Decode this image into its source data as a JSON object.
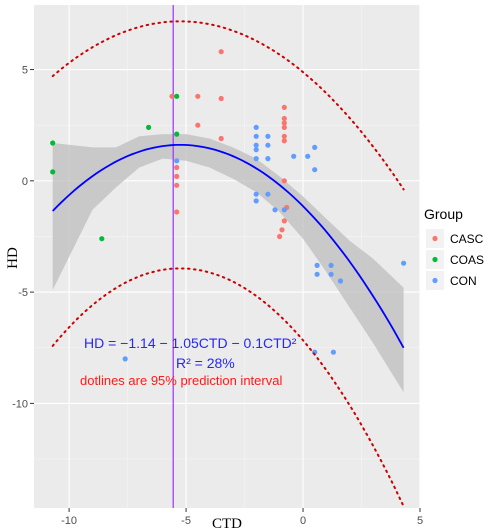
{
  "chart_data": {
    "type": "scatter",
    "title": "",
    "xlabel": "CTD",
    "ylabel": "HD",
    "xlim": [
      -11.5,
      5
    ],
    "ylim": [
      -14.7,
      7.9
    ],
    "xticks": [
      -10,
      -5,
      0,
      5
    ],
    "yticks": [
      5,
      0,
      -5,
      -10
    ],
    "xtick_labels": [
      "-10",
      "-5",
      "0",
      "5"
    ],
    "ytick_labels": [
      "5",
      "0",
      "-5",
      "-10"
    ],
    "grid": true,
    "legend": {
      "title": "Group",
      "position": "right",
      "entries": [
        "CASC",
        "COAS",
        "CON"
      ]
    },
    "series": [
      {
        "name": "CASC",
        "color": "#F8766D",
        "points": [
          [
            -3.5,
            5.8
          ],
          [
            -4.5,
            3.8
          ],
          [
            -3.5,
            3.7
          ],
          [
            -5.6,
            3.8
          ],
          [
            -4.5,
            2.5
          ],
          [
            -3.5,
            1.9
          ],
          [
            -5.4,
            0.6
          ],
          [
            -5.4,
            0.2
          ],
          [
            -5.4,
            -0.2
          ],
          [
            -5.4,
            -1.4
          ],
          [
            -0.8,
            3.3
          ],
          [
            -0.8,
            2.8
          ],
          [
            -0.8,
            2.6
          ],
          [
            -0.8,
            2.4
          ],
          [
            -0.8,
            2.0
          ],
          [
            -0.8,
            1.8
          ],
          [
            -0.8,
            0.0
          ],
          [
            -0.9,
            -2.2
          ],
          [
            -1.0,
            -2.5
          ],
          [
            -0.8,
            -1.8
          ],
          [
            -0.7,
            -1.2
          ]
        ]
      },
      {
        "name": "COAS",
        "color": "#00BA38",
        "points": [
          [
            -10.7,
            1.7
          ],
          [
            -10.7,
            0.4
          ],
          [
            -8.6,
            -2.6
          ],
          [
            -6.6,
            2.4
          ],
          [
            -5.4,
            3.8
          ],
          [
            -5.4,
            2.1
          ]
        ]
      },
      {
        "name": "CON",
        "color": "#619CFF",
        "points": [
          [
            -2.0,
            2.4
          ],
          [
            -2.0,
            2.0
          ],
          [
            -2.0,
            1.6
          ],
          [
            -2.0,
            1.4
          ],
          [
            -2.0,
            -0.6
          ],
          [
            -2.0,
            -0.9
          ],
          [
            -2.0,
            1.0
          ],
          [
            -1.5,
            2.0
          ],
          [
            -1.5,
            1.6
          ],
          [
            -1.5,
            1.0
          ],
          [
            -1.5,
            -0.6
          ],
          [
            -0.4,
            1.1
          ],
          [
            0.2,
            1.1
          ],
          [
            0.5,
            1.5
          ],
          [
            0.5,
            0.5
          ],
          [
            -1.2,
            -1.3
          ],
          [
            -0.8,
            -1.3
          ],
          [
            0.6,
            -3.8
          ],
          [
            1.2,
            -3.8
          ],
          [
            0.6,
            -4.2
          ],
          [
            1.2,
            -4.2
          ],
          [
            1.6,
            -4.5
          ],
          [
            4.3,
            -3.7
          ],
          [
            0.5,
            -7.7
          ],
          [
            1.3,
            -7.7
          ],
          [
            -7.6,
            -8.0
          ],
          [
            -5.4,
            0.9
          ]
        ]
      }
    ],
    "fit": {
      "formula": "HD = -1.14 - 1.05 CTD - 0.1 CTD^2",
      "intercept": -1.14,
      "b1": -1.05,
      "b2": -0.1,
      "x_range": [
        -10.7,
        4.3
      ],
      "line_color": "#0000FF",
      "band_color": "#BEBEBE",
      "band_lower": [
        [
          -10.7,
          -4.9
        ],
        [
          -9.0,
          -1.3
        ],
        [
          -8.0,
          -0.3
        ],
        [
          -7.0,
          0.6
        ],
        [
          -6.0,
          1.0
        ],
        [
          -5.0,
          0.9
        ],
        [
          -4.0,
          0.6
        ],
        [
          -3.0,
          0.1
        ],
        [
          -2.0,
          -0.5
        ],
        [
          -1.0,
          -1.4
        ],
        [
          0.0,
          -2.6
        ],
        [
          1.0,
          -4.1
        ],
        [
          2.0,
          -5.7
        ],
        [
          3.0,
          -7.3
        ],
        [
          4.3,
          -9.5
        ]
      ],
      "band_upper": [
        [
          -10.7,
          1.7
        ],
        [
          -9.0,
          1.5
        ],
        [
          -8.0,
          1.5
        ],
        [
          -7.0,
          2.0
        ],
        [
          -6.0,
          2.1
        ],
        [
          -5.0,
          2.1
        ],
        [
          -4.0,
          1.9
        ],
        [
          -3.0,
          1.5
        ],
        [
          -2.0,
          1.0
        ],
        [
          -1.0,
          0.2
        ],
        [
          0.0,
          -0.7
        ],
        [
          1.0,
          -1.7
        ],
        [
          2.0,
          -2.7
        ],
        [
          3.0,
          -3.5
        ],
        [
          4.3,
          -4.8
        ]
      ]
    },
    "prediction_interval": {
      "color": "#CC0000",
      "offset_center": 5.55,
      "offset_edge_x": 6.6,
      "offset_edge": 6.3
    },
    "vline": {
      "x": -5.55,
      "color": "#9B30FF"
    },
    "annotations": {
      "equation": "HD = −1.14 − 1.05CTD − 0.1CTD²",
      "r2": "R² = 28%",
      "note": "dotlines are 95% prediction interval"
    }
  }
}
